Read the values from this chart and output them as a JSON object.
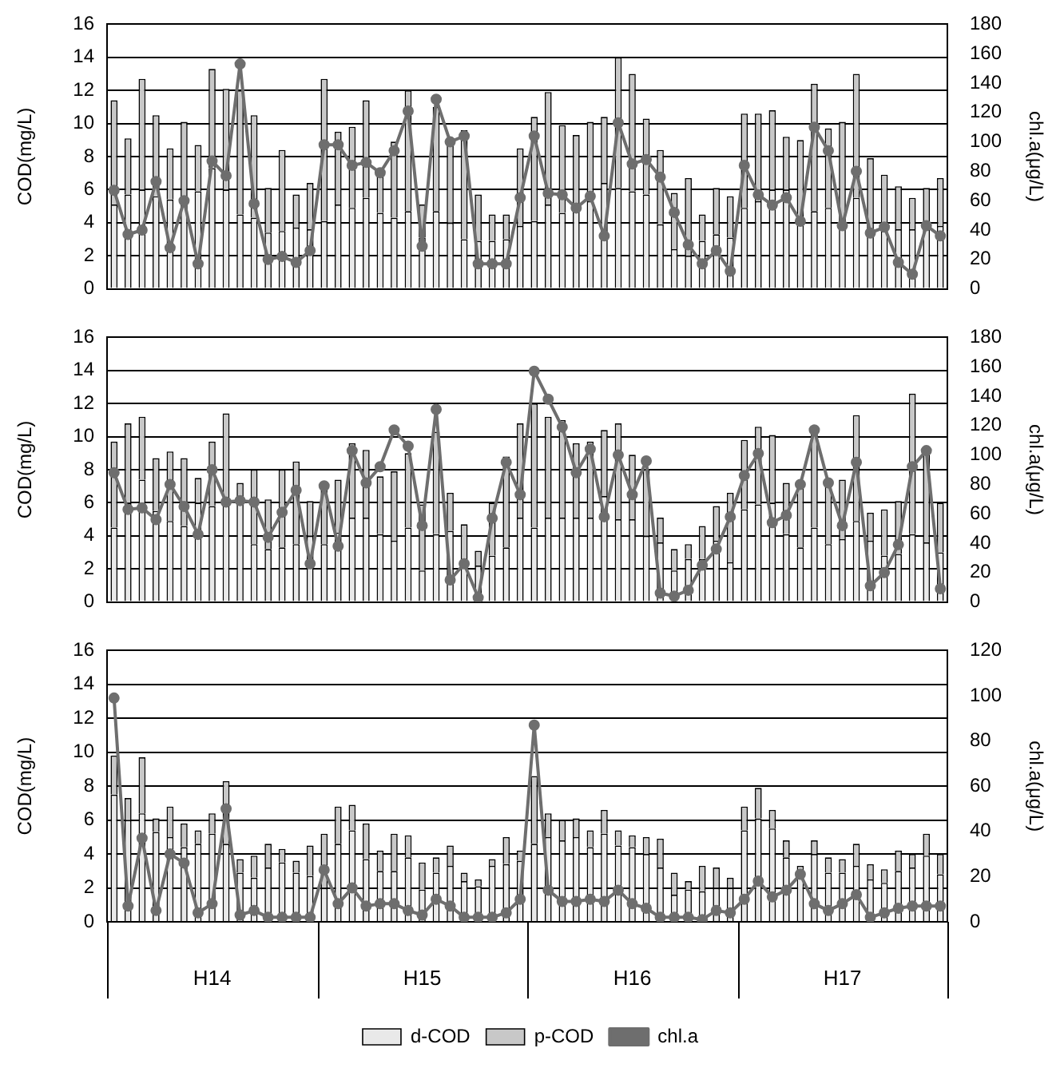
{
  "chart_data": [
    {
      "type": "bar",
      "stacked": true,
      "categories": [
        null,
        null,
        null,
        null,
        null,
        null,
        null,
        null,
        null,
        null,
        null,
        null,
        null,
        null,
        null,
        null,
        null,
        null,
        null,
        null,
        null,
        null,
        null,
        null,
        null,
        null,
        null,
        null,
        null,
        null,
        null,
        null,
        null,
        null,
        null,
        null,
        null,
        null,
        null,
        null,
        null,
        null,
        null,
        null,
        null,
        null,
        null,
        null,
        null,
        null,
        null,
        null,
        null,
        null,
        null,
        null,
        null,
        null,
        null,
        null
      ],
      "ylabel": "COD(mg/L)",
      "y2label": "chl.a(μg/L)",
      "ylim": [
        0,
        16
      ],
      "yticks": [
        0,
        2,
        4,
        6,
        8,
        10,
        12,
        14,
        16
      ],
      "y2lim": [
        0,
        180
      ],
      "y2ticks": [
        0,
        20,
        40,
        60,
        80,
        100,
        120,
        140,
        160,
        180
      ],
      "grid": "y",
      "legend": false,
      "tick_labels": "y",
      "series": [
        {
          "color": "#e9e9e9",
          "values": [
            5.1,
            5.7,
            6.0,
            5.6,
            5.4,
            5.0,
            5.9,
            7.3,
            6.0,
            4.5,
            4.3,
            3.4,
            3.5,
            3.7,
            3.6,
            4.1,
            5.1,
            4.9,
            5.5,
            4.6,
            4.3,
            4.7,
            3.1,
            4.7,
            4.0,
            3.0,
            2.9,
            2.9,
            3.0,
            3.8,
            4.1,
            5.1,
            4.6,
            5.1,
            5.3,
            6.4,
            6.1,
            5.9,
            5.7,
            3.9,
            2.4,
            2.0,
            2.9,
            3.3,
            3.1,
            4.9,
            5.3,
            6.0,
            6.0,
            4.2,
            4.7,
            4.9,
            3.9,
            5.5,
            3.4,
            3.5,
            3.6,
            3.6,
            3.6,
            3.8
          ]
        },
        {
          "color": "#c8c8c8",
          "values": [
            6.3,
            3.4,
            6.7,
            4.9,
            3.1,
            5.1,
            2.8,
            6.0,
            6.1,
            7.5,
            6.2,
            2.7,
            4.9,
            2.0,
            2.8,
            8.6,
            4.4,
            4.9,
            5.9,
            2.4,
            4.6,
            7.3,
            2.0,
            6.3,
            4.7,
            6.6,
            2.8,
            1.6,
            1.5,
            4.7,
            6.3,
            6.8,
            5.3,
            4.2,
            4.8,
            4.0,
            7.9,
            7.1,
            4.6,
            4.5,
            3.4,
            4.7,
            1.6,
            2.8,
            2.5,
            5.7,
            5.3,
            4.8,
            3.2,
            4.8,
            7.7,
            4.8,
            6.2,
            7.5,
            4.5,
            3.4,
            2.6,
            1.9,
            2.5,
            2.9
          ]
        },
        {
          "type": "line",
          "axis": "y2",
          "color": "#6e6e6e",
          "marker": "circle",
          "values": [
            67,
            37,
            40,
            73,
            28,
            60,
            17,
            87,
            77,
            153,
            58,
            20,
            22,
            18,
            26,
            98,
            98,
            84,
            86,
            79,
            94,
            121,
            29,
            129,
            100,
            104,
            17,
            17,
            17,
            62,
            104,
            65,
            64,
            55,
            63,
            36,
            113,
            85,
            88,
            76,
            52,
            30,
            17,
            26,
            12,
            84,
            64,
            57,
            62,
            46,
            110,
            94,
            43,
            80,
            38,
            42,
            18,
            10,
            43,
            36
          ]
        }
      ]
    },
    {
      "type": "bar",
      "stacked": true,
      "categories": [
        null,
        null,
        null,
        null,
        null,
        null,
        null,
        null,
        null,
        null,
        null,
        null,
        null,
        null,
        null,
        null,
        null,
        null,
        null,
        null,
        null,
        null,
        null,
        null,
        null,
        null,
        null,
        null,
        null,
        null,
        null,
        null,
        null,
        null,
        null,
        null,
        null,
        null,
        null,
        null,
        null,
        null,
        null,
        null,
        null,
        null,
        null,
        null,
        null,
        null,
        null,
        null,
        null,
        null,
        null,
        null,
        null,
        null,
        null,
        null
      ],
      "ylabel": "COD(mg/L)",
      "y2label": "chl.a(μg/L)",
      "ylim": [
        0,
        16
      ],
      "yticks": [
        0,
        2,
        4,
        6,
        8,
        10,
        12,
        14,
        16
      ],
      "y2lim": [
        0,
        180
      ],
      "y2ticks": [
        0,
        20,
        40,
        60,
        80,
        100,
        120,
        140,
        160,
        180
      ],
      "grid": "y",
      "legend": false,
      "tick_labels": "y",
      "series": [
        {
          "color": "#e9e9e9",
          "values": [
            4.5,
            6.0,
            7.4,
            5.5,
            4.9,
            4.6,
            6.0,
            5.8,
            6.0,
            6.0,
            3.5,
            3.2,
            3.3,
            3.5,
            4.0,
            3.5,
            4.2,
            5.1,
            5.1,
            4.1,
            3.7,
            4.5,
            1.9,
            4.1,
            4.3,
            2.2,
            2.2,
            2.8,
            3.3,
            5.1,
            4.5,
            5.1,
            5.1,
            5.1,
            5.1,
            6.4,
            5.0,
            5.0,
            4.0,
            3.6,
            1.9,
            2.6,
            2.6,
            3.7,
            2.4,
            5.6,
            5.9,
            6.0,
            4.1,
            3.3,
            4.5,
            3.5,
            3.8,
            4.9,
            3.7,
            2.8,
            2.9,
            4.1,
            3.6,
            3.0
          ]
        },
        {
          "color": "#c8c8c8",
          "values": [
            5.2,
            4.8,
            3.8,
            3.2,
            4.2,
            4.1,
            1.5,
            3.9,
            5.4,
            1.2,
            4.5,
            3.0,
            4.7,
            5.0,
            2.1,
            3.6,
            3.2,
            4.5,
            4.1,
            3.5,
            4.2,
            4.5,
            4.0,
            6.2,
            2.3,
            2.5,
            0.9,
            3.2,
            5.5,
            5.7,
            7.5,
            6.1,
            5.9,
            4.5,
            4.6,
            4.0,
            5.8,
            3.9,
            4.0,
            1.5,
            1.3,
            0.9,
            2.0,
            2.1,
            4.2,
            4.2,
            4.7,
            4.1,
            3.1,
            3.9,
            5.9,
            3.7,
            3.6,
            6.4,
            1.7,
            2.8,
            3.2,
            8.5,
            5.6,
            3.0
          ]
        },
        {
          "type": "line",
          "axis": "y2",
          "color": "#6e6e6e",
          "marker": "circle",
          "values": [
            88,
            63,
            64,
            56,
            80,
            65,
            46,
            90,
            68,
            69,
            68,
            44,
            61,
            76,
            26,
            79,
            38,
            103,
            81,
            92,
            117,
            106,
            52,
            131,
            15,
            26,
            3,
            57,
            95,
            73,
            157,
            138,
            119,
            88,
            104,
            58,
            100,
            73,
            96,
            6,
            4,
            8,
            25,
            36,
            58,
            86,
            101,
            54,
            59,
            80,
            117,
            81,
            52,
            95,
            11,
            20,
            39,
            92,
            103,
            9
          ]
        }
      ]
    },
    {
      "type": "bar",
      "stacked": true,
      "categories": [
        null,
        null,
        null,
        null,
        null,
        null,
        null,
        null,
        null,
        null,
        null,
        null,
        null,
        null,
        null,
        null,
        null,
        null,
        null,
        null,
        null,
        null,
        null,
        null,
        null,
        null,
        null,
        null,
        null,
        null,
        null,
        null,
        null,
        null,
        null,
        null,
        null,
        null,
        null,
        null,
        null,
        null,
        null,
        null,
        null,
        null,
        null,
        null,
        null,
        null,
        null,
        null,
        null,
        null,
        null,
        null,
        null,
        null,
        null,
        null
      ],
      "ylabel": "COD(mg/L)",
      "y2label": "chl.a(μg/L)",
      "ylim": [
        0,
        16
      ],
      "yticks": [
        0,
        2,
        4,
        6,
        8,
        10,
        12,
        14,
        16
      ],
      "y2lim": [
        0,
        120
      ],
      "y2ticks": [
        0,
        20,
        40,
        60,
        80,
        100,
        120
      ],
      "grid": "y",
      "legend": "bottom",
      "tick_labels": "y",
      "annotations": [
        "H14",
        "H15",
        "H16",
        "H17"
      ],
      "series": [
        {
          "name": "d-COD",
          "color": "#e9e9e9",
          "values": [
            7.5,
            6.0,
            6.4,
            5.3,
            5.0,
            4.4,
            4.6,
            5.2,
            4.6,
            2.9,
            2.6,
            3.2,
            3.5,
            2.9,
            2.7,
            2.0,
            4.6,
            5.4,
            3.7,
            3.0,
            3.0,
            3.8,
            1.9,
            2.9,
            3.3,
            2.4,
            2.1,
            3.3,
            3.4,
            3.6,
            4.6,
            5.0,
            4.8,
            5.0,
            4.4,
            5.2,
            4.5,
            4.4,
            4.0,
            3.2,
            1.6,
            1.9,
            1.8,
            2.0,
            2.0,
            5.4,
            6.1,
            5.5,
            3.8,
            3.0,
            4.0,
            2.9,
            2.9,
            3.3,
            2.5,
            2.3,
            3.0,
            3.2,
            3.9,
            2.8
          ]
        },
        {
          "name": "p-COD",
          "color": "#c8c8c8",
          "values": [
            2.3,
            1.3,
            3.3,
            0.8,
            1.8,
            1.4,
            0.8,
            1.2,
            3.7,
            0.8,
            1.3,
            1.4,
            0.8,
            0.7,
            1.8,
            3.2,
            2.2,
            1.5,
            2.1,
            1.2,
            2.2,
            1.3,
            1.6,
            0.9,
            1.2,
            0.5,
            0.4,
            0.4,
            1.6,
            0.6,
            4.0,
            1.4,
            1.2,
            1.1,
            1.0,
            1.4,
            0.9,
            0.7,
            1.0,
            1.7,
            1.3,
            0.5,
            1.5,
            1.2,
            0.6,
            1.4,
            1.8,
            1.1,
            1.0,
            0.3,
            0.8,
            0.9,
            0.8,
            1.3,
            0.9,
            0.8,
            1.2,
            0.8,
            1.3,
            1.2
          ]
        },
        {
          "name": "chl.a",
          "type": "line",
          "axis": "y2",
          "color": "#6e6e6e",
          "marker": "circle",
          "values": [
            99,
            7,
            37,
            5,
            30,
            26,
            4,
            8,
            50,
            3,
            5,
            2,
            2,
            2,
            2,
            23,
            8,
            15,
            7,
            8,
            8,
            5,
            3,
            10,
            7,
            2,
            2,
            2,
            4,
            10,
            87,
            14,
            9,
            9,
            10,
            9,
            14,
            8,
            6,
            2,
            2,
            2,
            1,
            5,
            4,
            10,
            18,
            11,
            14,
            21,
            8,
            5,
            8,
            12,
            2,
            4,
            6,
            7,
            7,
            7
          ]
        }
      ]
    }
  ]
}
